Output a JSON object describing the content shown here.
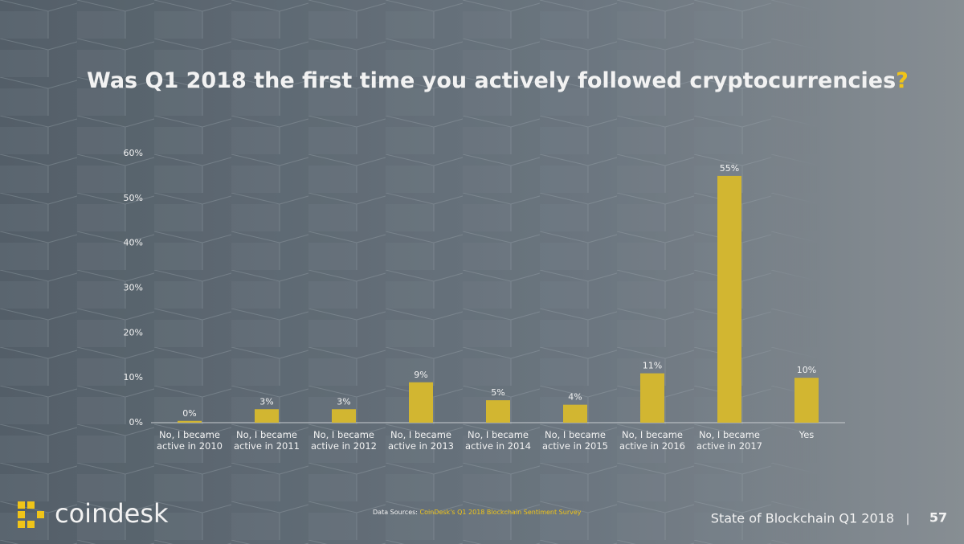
{
  "chart_data": {
    "type": "bar",
    "title": [
      "Was Q1 2018 the first time you actively followed cryptocurrencies",
      "?"
    ],
    "categories": [
      "No, I became active in 2010",
      "No, I became active in 2011",
      "No, I became active in 2012",
      "No, I became active in 2013",
      "No, I became active in 2014",
      "No, I became active in 2015",
      "No, I became active in 2016",
      "No, I became active in 2017",
      "Yes"
    ],
    "values": [
      0.4,
      3,
      3,
      9,
      5,
      4,
      11,
      55,
      10
    ],
    "value_labels": [
      "0%",
      "3%",
      "3%",
      "9%",
      "5%",
      "4%",
      "11%",
      "55%",
      "10%"
    ],
    "color": "#d2b631",
    "ylim": [
      0,
      60
    ],
    "yticks": [
      {
        "value": 0,
        "label": "0%"
      },
      {
        "value": 10,
        "label": "10%"
      },
      {
        "value": 20,
        "label": "20%"
      },
      {
        "value": 30,
        "label": "30%"
      },
      {
        "value": 40,
        "label": "40%"
      },
      {
        "value": 50,
        "label": "50%"
      },
      {
        "value": 60,
        "label": "60%"
      }
    ],
    "grid": false
  },
  "footer": {
    "logo": "coindesk",
    "source_label": "Data Sources:",
    "source": "CoinDesk's Q1 2018 Blockchain Sentiment Survey",
    "report": "State of Blockchain Q1 2018",
    "separator": "|",
    "page": "57"
  }
}
